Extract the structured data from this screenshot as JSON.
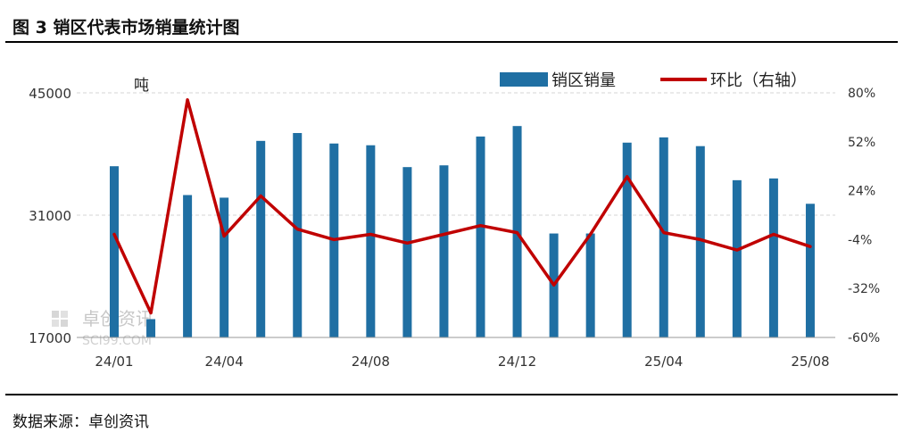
{
  "header": {
    "title": "图 3  销区代表市场销量统计图"
  },
  "footer": {
    "source": "数据来源：卓创资讯"
  },
  "watermark": {
    "text": "卓创资讯",
    "sub": "SCI99.COM"
  },
  "chart_data": {
    "type": "bar",
    "title": "图 3  销区代表市场销量统计图",
    "left_unit": "吨",
    "categories": [
      "24/01",
      "24/02",
      "24/03",
      "24/04",
      "24/05",
      "24/06",
      "24/07",
      "24/08",
      "24/09",
      "24/10",
      "24/11",
      "24/12",
      "25/01",
      "25/02",
      "25/03",
      "25/04",
      "25/05",
      "25/06",
      "25/07",
      "25/08"
    ],
    "x_tick_labels": [
      "24/01",
      "24/04",
      "24/08",
      "24/12",
      "25/04",
      "25/08"
    ],
    "series": [
      {
        "name": "销区销量",
        "type": "bar",
        "axis": "left",
        "color": "#1f6fa3",
        "values": [
          36600,
          19100,
          33300,
          33000,
          39500,
          40400,
          39200,
          39000,
          36500,
          36700,
          40000,
          41200,
          28900,
          28900,
          39300,
          39900,
          38900,
          35000,
          35200,
          32300
        ]
      },
      {
        "name": "环比（右轴）",
        "type": "line",
        "axis": "right",
        "color": "#c00000",
        "values": [
          -0.01,
          -0.46,
          0.76,
          -0.02,
          0.21,
          0.02,
          -0.04,
          -0.01,
          -0.06,
          -0.01,
          0.04,
          0.0,
          -0.3,
          -0.01,
          0.32,
          0.0,
          -0.04,
          -0.1,
          -0.01,
          -0.08
        ]
      }
    ],
    "y_left": {
      "min": 17000,
      "max": 45000,
      "ticks": [
        17000,
        31000,
        45000
      ]
    },
    "y_right": {
      "min": -0.6,
      "max": 0.8,
      "ticks": [
        "-60%",
        "-32%",
        "-4%",
        "24%",
        "52%",
        "80%"
      ]
    },
    "grid": true,
    "legend": "top-right"
  }
}
